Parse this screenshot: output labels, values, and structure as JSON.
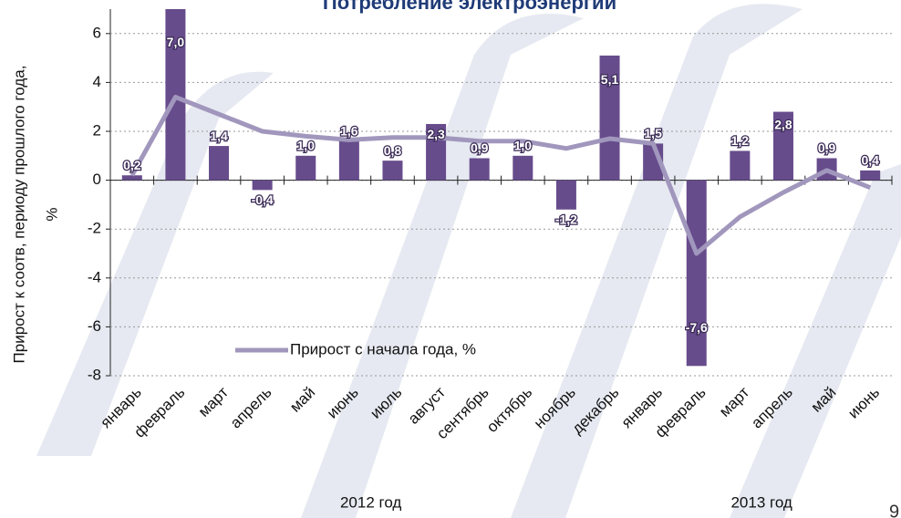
{
  "chart_data": {
    "type": "bar_line",
    "title": "Потребление электроэнергии",
    "y_label": [
      "Прирост к соотв, периоду прошлого года,",
      "%"
    ],
    "categories": [
      "январь",
      "февраль",
      "март",
      "апрель",
      "май",
      "июнь",
      "июль",
      "август",
      "сентябрь",
      "октябрь",
      "ноябрь",
      "декабрь",
      "январь",
      "февраль",
      "март",
      "апрель",
      "май",
      "июнь"
    ],
    "groups": [
      {
        "label": "2012 год",
        "span": [
          0,
          11
        ]
      },
      {
        "label": "2013 год",
        "span": [
          12,
          17
        ]
      }
    ],
    "series": [
      {
        "type": "bar",
        "color": "#674c8c",
        "values": [
          0.2,
          7.0,
          1.4,
          -0.4,
          1.0,
          1.6,
          0.8,
          2.3,
          0.9,
          1.0,
          -1.2,
          5.1,
          1.5,
          -7.6,
          1.2,
          2.8,
          0.9,
          0.4
        ],
        "value_labels": [
          "0,2",
          "7,0",
          "1,4",
          "-0,4",
          "1,0",
          "1,6",
          "0,8",
          "2,3",
          "0,9",
          "1,0",
          "-1,2",
          "5,1",
          "1,5",
          "-7,6",
          "1,2",
          "2,8",
          "0,9",
          "0,4"
        ]
      },
      {
        "type": "line",
        "name": "Прирост с начала года, %",
        "color": "#a197bd",
        "values": [
          0.2,
          3.4,
          2.7,
          2.0,
          1.8,
          1.65,
          1.75,
          1.75,
          1.6,
          1.6,
          1.3,
          1.7,
          1.5,
          -3.0,
          -1.5,
          -0.5,
          0.4,
          -0.3
        ]
      }
    ],
    "ylim": [
      -8,
      7
    ],
    "yticks": [
      -8,
      -6,
      -4,
      -2,
      0,
      2,
      4,
      6
    ],
    "grid": true,
    "page_number": "9"
  }
}
